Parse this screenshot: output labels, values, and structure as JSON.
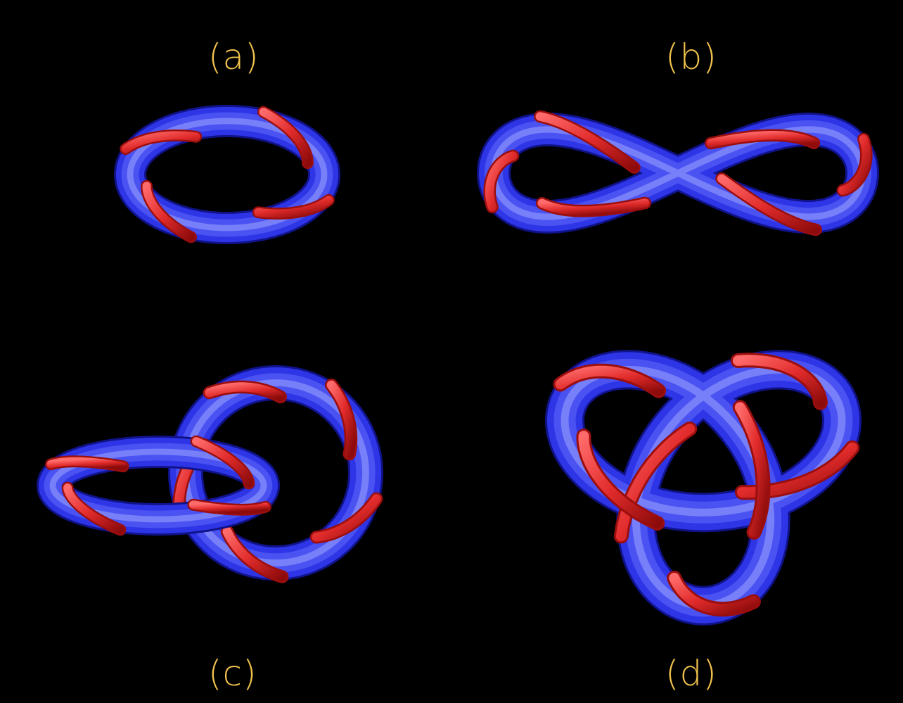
{
  "panels": [
    {
      "label": "(a)",
      "shape": "unknot"
    },
    {
      "label": "(b)",
      "shape": "figure-eight-curve"
    },
    {
      "label": "(c)",
      "shape": "two-loop-knot"
    },
    {
      "label": "(d)",
      "shape": "trefoil-knot"
    }
  ],
  "colors": {
    "background": "#000000",
    "label": "#EFC14C",
    "tube_blue": "#2E35E6",
    "tube_highlight": "#9DA4FF",
    "ribbon_red": "#E12B2B",
    "ribbon_dark": "#9B0E0E"
  }
}
